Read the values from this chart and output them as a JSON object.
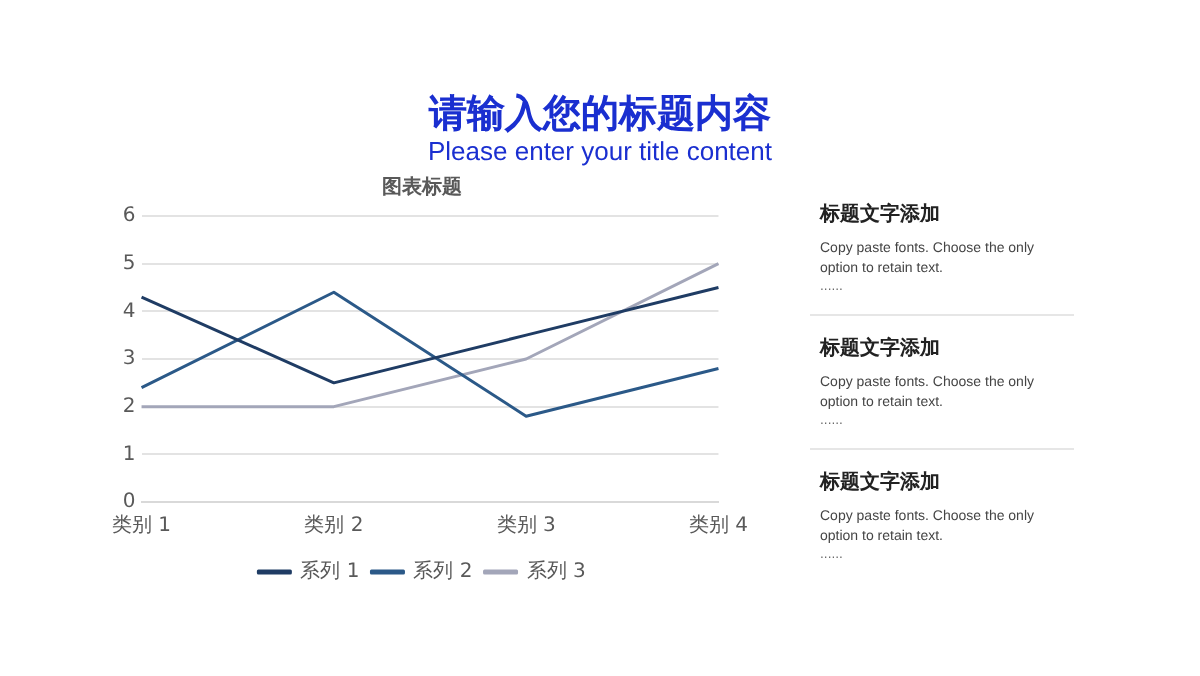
{
  "chart_data": [
    {
      "type": "line",
      "title": "图表标题",
      "categories": [
        "类别 1",
        "类别 2",
        "类别 3",
        "类别 4"
      ],
      "series": [
        {
          "name": "系列 1",
          "color": "#1f3c64",
          "values": [
            4.3,
            2.5,
            3.5,
            4.5
          ]
        },
        {
          "name": "系列 2",
          "color": "#2b5988",
          "values": [
            2.4,
            4.4,
            1.8,
            2.8
          ]
        },
        {
          "name": "系列 3",
          "color": "#a3a6b9",
          "values": [
            2,
            2,
            3,
            5
          ]
        }
      ],
      "ylim": [
        0,
        6
      ],
      "yticks": [
        0,
        1,
        2,
        3,
        4,
        5,
        6
      ],
      "grid": "y",
      "legend": "bottom",
      "marker": "none",
      "line_style": "solid"
    },
    {
      "type": "other",
      "title": "请输入您的标题内容",
      "subtitle": "Please enter your title content",
      "annotations": [
        "标题文字添加",
        "Copy paste fonts. Choose the only option to retain text.",
        "......",
        "标题文字添加",
        "Copy paste fonts. Choose the only option to retain text.",
        "......",
        "标题文字添加",
        "Copy paste fonts. Choose the only option to retain text.",
        "......"
      ]
    }
  ]
}
